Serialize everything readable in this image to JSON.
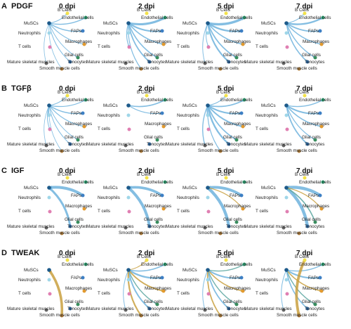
{
  "panels": [
    {
      "letter": "A",
      "pathway": "PDGF"
    },
    {
      "letter": "B",
      "pathway": "TGFβ"
    },
    {
      "letter": "C",
      "pathway": "IGF"
    },
    {
      "letter": "D",
      "pathway": "TWEAK"
    }
  ],
  "timepoints": [
    "0 dpi",
    "2 dpi",
    "5 dpi",
    "7 dpi"
  ],
  "cell_types": [
    {
      "key": "bcells",
      "label": "B Cells",
      "color": "#f3e24a"
    },
    {
      "key": "musc",
      "label": "MuSCs",
      "color": "#1d5a8a"
    },
    {
      "key": "endo",
      "label": "Endothelial cells",
      "color": "#2a9d6e"
    },
    {
      "key": "neutro",
      "label": "Neutrophils",
      "color": "#9fd6e8"
    },
    {
      "key": "faps",
      "label": "FAPs",
      "color": "#3d7fc4"
    },
    {
      "key": "macro",
      "label": "Macrophages",
      "color": "#e39a2e"
    },
    {
      "key": "tcells",
      "label": "T cells",
      "color": "#e07fb2"
    },
    {
      "key": "glial",
      "label": "Glial cells",
      "color": "#3a8d5e"
    },
    {
      "key": "mature",
      "label": "Mature skeletal muscles",
      "color": "#666666"
    },
    {
      "key": "teno",
      "label": "Tenocytes",
      "color": "#2f6fae"
    },
    {
      "key": "smooth",
      "label": "Smooth muscle cells",
      "color": "#b07d3a"
    }
  ],
  "edge_colors": {
    "blue": "#6fb3dd",
    "gold": "#c9a040",
    "teal": "#5aa6a0"
  },
  "networks": [
    [
      {
        "edges": [
          [
            "musc",
            "bcells",
            1,
            "blue"
          ],
          [
            "musc",
            "endo",
            1.4,
            "blue"
          ],
          [
            "musc",
            "faps",
            1.4,
            "blue"
          ],
          [
            "musc",
            "macro",
            1,
            "blue"
          ],
          [
            "musc",
            "glial",
            1,
            "blue"
          ],
          [
            "musc",
            "teno",
            1,
            "blue"
          ],
          [
            "musc",
            "mature",
            0.8,
            "blue"
          ],
          [
            "musc",
            "smooth",
            0.8,
            "blue"
          ]
        ]
      },
      {
        "edges": [
          [
            "musc",
            "endo",
            3,
            "blue"
          ],
          [
            "musc",
            "faps",
            2.2,
            "blue"
          ],
          [
            "musc",
            "macro",
            1.6,
            "blue"
          ],
          [
            "musc",
            "glial",
            1.6,
            "blue"
          ],
          [
            "musc",
            "teno",
            1.8,
            "blue"
          ],
          [
            "musc",
            "tcells",
            1.2,
            "blue"
          ],
          [
            "musc",
            "smooth",
            1.2,
            "blue"
          ]
        ]
      },
      {
        "edges": [
          [
            "musc",
            "endo",
            3.4,
            "blue"
          ],
          [
            "musc",
            "faps",
            2.4,
            "blue"
          ],
          [
            "musc",
            "macro",
            1.6,
            "blue"
          ],
          [
            "musc",
            "glial",
            1.8,
            "blue"
          ],
          [
            "musc",
            "teno",
            2.2,
            "blue"
          ],
          [
            "musc",
            "mature",
            1,
            "blue"
          ],
          [
            "musc",
            "tcells",
            1,
            "blue"
          ]
        ]
      },
      {
        "edges": [
          [
            "musc",
            "endo",
            2.4,
            "blue"
          ],
          [
            "musc",
            "faps",
            1.8,
            "blue"
          ],
          [
            "musc",
            "macro",
            1.4,
            "blue"
          ],
          [
            "musc",
            "glial",
            1.4,
            "blue"
          ],
          [
            "musc",
            "teno",
            1.6,
            "blue"
          ],
          [
            "musc",
            "bcells",
            1,
            "blue"
          ]
        ]
      }
    ],
    [
      {
        "edges": [
          [
            "musc",
            "bcells",
            1,
            "blue"
          ],
          [
            "musc",
            "endo",
            1.2,
            "blue"
          ],
          [
            "musc",
            "faps",
            1.4,
            "blue"
          ],
          [
            "musc",
            "neutro",
            1,
            "blue"
          ],
          [
            "musc",
            "macro",
            1.2,
            "blue"
          ],
          [
            "musc",
            "tcells",
            1,
            "blue"
          ],
          [
            "musc",
            "glial",
            1,
            "blue"
          ],
          [
            "musc",
            "mature",
            0.8,
            "blue"
          ],
          [
            "musc",
            "teno",
            1,
            "blue"
          ],
          [
            "musc",
            "smooth",
            0.8,
            "blue"
          ]
        ]
      },
      {
        "edges": [
          [
            "musc",
            "endo",
            1.6,
            "blue"
          ],
          [
            "musc",
            "faps",
            1.2,
            "blue"
          ]
        ]
      },
      {
        "edges": [
          [
            "musc",
            "bcells",
            1.2,
            "blue"
          ],
          [
            "musc",
            "endo",
            1.8,
            "blue"
          ],
          [
            "musc",
            "faps",
            2.2,
            "blue"
          ],
          [
            "musc",
            "neutro",
            1,
            "blue"
          ],
          [
            "musc",
            "macro",
            2,
            "blue"
          ],
          [
            "musc",
            "glial",
            1.8,
            "blue"
          ],
          [
            "musc",
            "mature",
            1.4,
            "blue"
          ],
          [
            "musc",
            "teno",
            2.4,
            "blue"
          ],
          [
            "musc",
            "smooth",
            1.2,
            "blue"
          ]
        ]
      },
      {
        "edges": [
          [
            "musc",
            "endo",
            1.4,
            "blue"
          ],
          [
            "musc",
            "faps",
            2,
            "blue"
          ],
          [
            "musc",
            "macro",
            1.6,
            "blue"
          ],
          [
            "musc",
            "glial",
            1.2,
            "blue"
          ],
          [
            "musc",
            "teno",
            1.8,
            "blue"
          ]
        ]
      }
    ],
    [
      {
        "edges": [
          [
            "faps",
            "musc",
            4,
            "blue"
          ],
          [
            "teno",
            "musc",
            3,
            "blue"
          ]
        ]
      },
      {
        "edges": [
          [
            "faps",
            "musc",
            3.6,
            "blue"
          ],
          [
            "teno",
            "musc",
            4,
            "blue"
          ]
        ]
      },
      {
        "edges": [
          [
            "faps",
            "musc",
            3.8,
            "blue"
          ],
          [
            "teno",
            "musc",
            4.2,
            "blue"
          ],
          [
            "macro",
            "musc",
            1.2,
            "gold"
          ]
        ]
      },
      {
        "edges": [
          [
            "faps",
            "musc",
            4.4,
            "blue"
          ],
          [
            "teno",
            "musc",
            4.4,
            "blue"
          ],
          [
            "glial",
            "musc",
            1.6,
            "teal"
          ],
          [
            "macro",
            "musc",
            1.4,
            "gold"
          ]
        ]
      }
    ],
    [
      {
        "edges": [
          [
            "smooth",
            "musc",
            3.6,
            "gold"
          ]
        ]
      },
      {
        "edges": [
          [
            "musc",
            "faps",
            2.4,
            "blue"
          ],
          [
            "musc",
            "endo",
            1.6,
            "blue"
          ],
          [
            "musc",
            "macro",
            1.8,
            "gold"
          ],
          [
            "musc",
            "glial",
            1.4,
            "teal"
          ],
          [
            "musc",
            "teno",
            2,
            "blue"
          ],
          [
            "musc",
            "smooth",
            2.2,
            "gold"
          ],
          [
            "musc",
            "mature",
            1,
            "blue"
          ],
          [
            "musc",
            "bcells",
            1,
            "gold"
          ]
        ]
      },
      {
        "edges": [
          [
            "musc",
            "faps",
            2,
            "blue"
          ],
          [
            "musc",
            "endo",
            1.4,
            "teal"
          ],
          [
            "musc",
            "macro",
            1.6,
            "gold"
          ],
          [
            "musc",
            "glial",
            1.4,
            "teal"
          ],
          [
            "musc",
            "teno",
            1.8,
            "blue"
          ],
          [
            "musc",
            "smooth",
            1.8,
            "gold"
          ],
          [
            "musc",
            "mature",
            1,
            "blue"
          ]
        ]
      },
      {
        "edges": [
          [
            "musc",
            "faps",
            2.2,
            "blue"
          ],
          [
            "musc",
            "endo",
            1.4,
            "blue"
          ],
          [
            "musc",
            "macro",
            1.6,
            "gold"
          ],
          [
            "musc",
            "glial",
            1.4,
            "teal"
          ],
          [
            "musc",
            "teno",
            1.6,
            "blue"
          ],
          [
            "bcells",
            "smooth",
            3.8,
            "gold"
          ],
          [
            "musc",
            "mature",
            1,
            "blue"
          ]
        ]
      }
    ]
  ]
}
